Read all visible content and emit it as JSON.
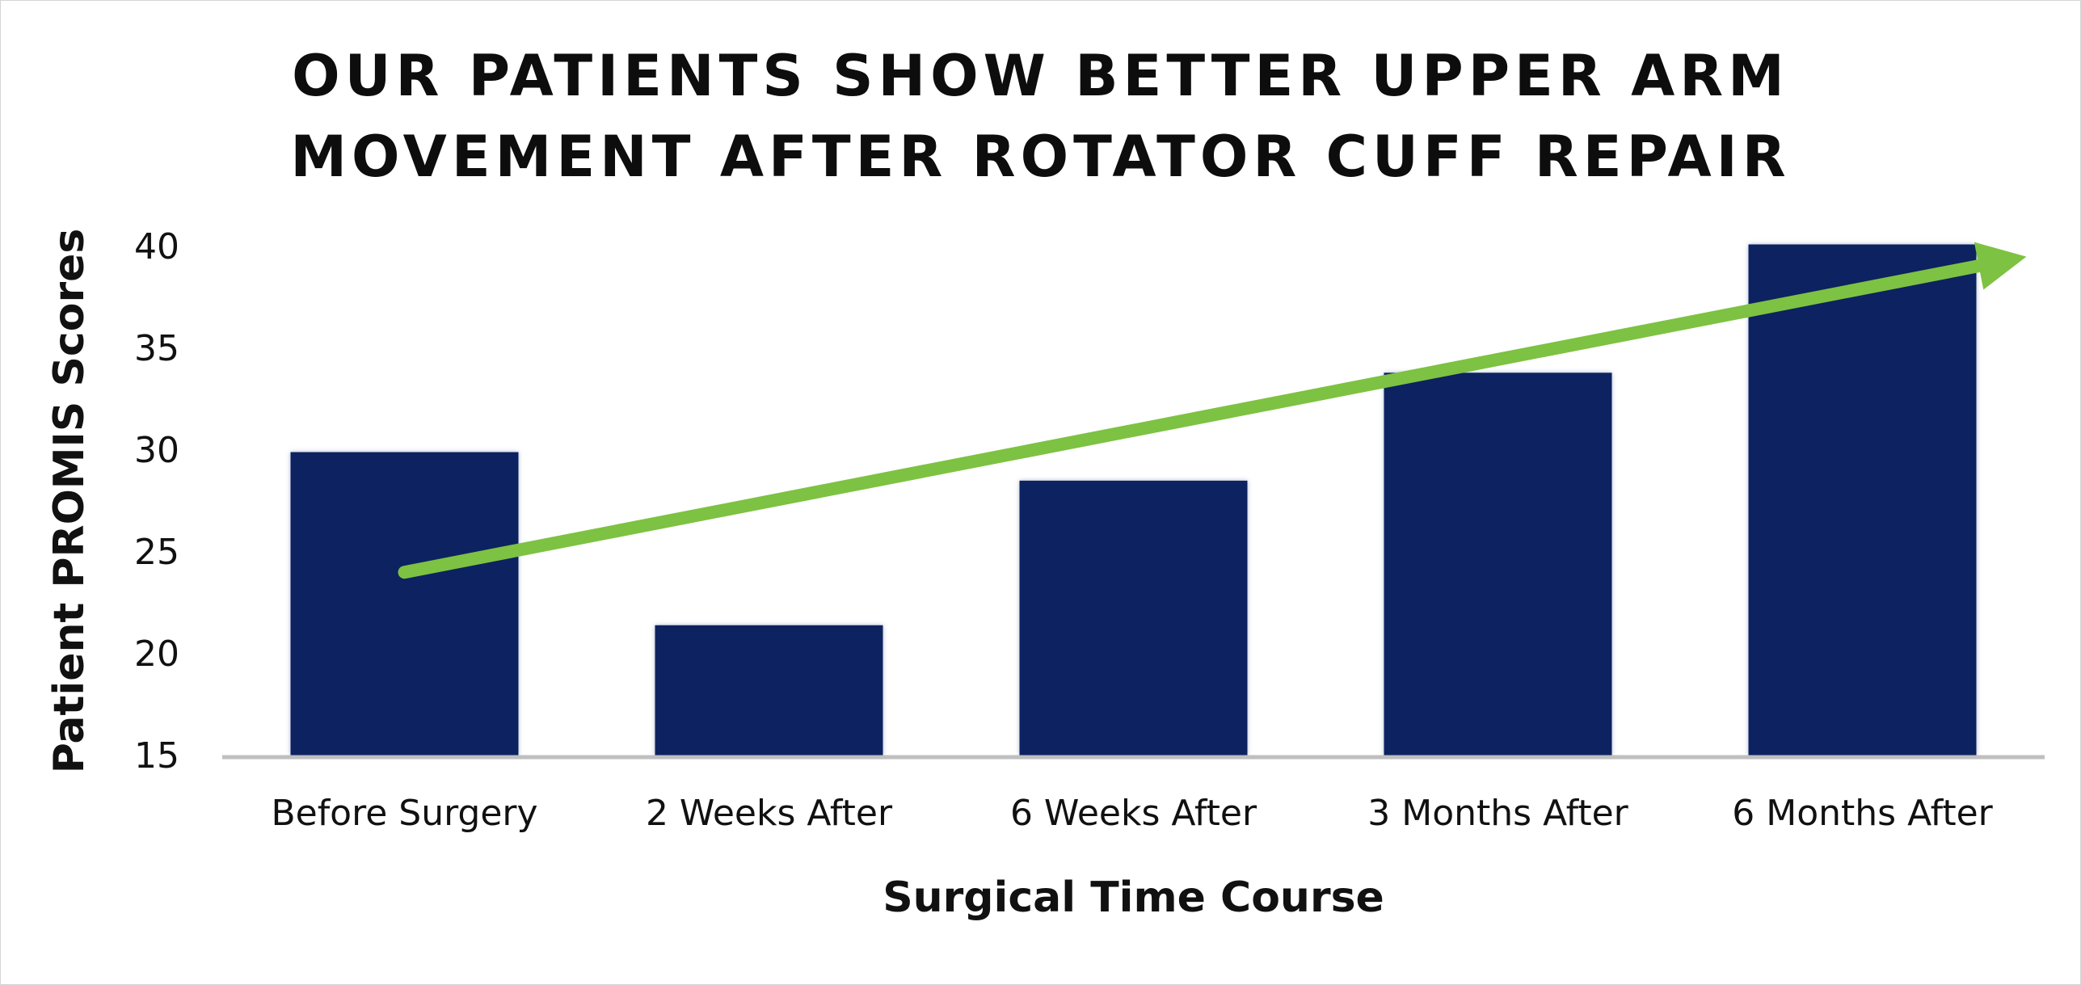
{
  "chart_data": {
    "type": "bar",
    "title_lines": [
      "OUR PATIENTS SHOW BETTER UPPER ARM",
      "MOVEMENT AFTER ROTATOR CUFF REPAIR"
    ],
    "xlabel": "Surgical Time Course",
    "ylabel": "Patient PROMIS Scores",
    "categories": [
      "Before Surgery",
      "2 Weeks After",
      "6 Weeks After",
      "3 Months After",
      "6 Months After"
    ],
    "values": [
      29.9,
      21.4,
      28.5,
      33.8,
      40.1
    ],
    "ylim": [
      15,
      40
    ],
    "yticks": [
      "15",
      "20",
      "25",
      "30",
      "35",
      "40"
    ],
    "grid": false,
    "legend": "none",
    "bar_color": "#072060",
    "axis_color": "#bfbfbf",
    "trend_arrow": {
      "color": "#7dc242",
      "start": {
        "category_index": 0,
        "value": 24
      },
      "end": {
        "category_index": 4.45,
        "value": 39.5
      }
    }
  }
}
